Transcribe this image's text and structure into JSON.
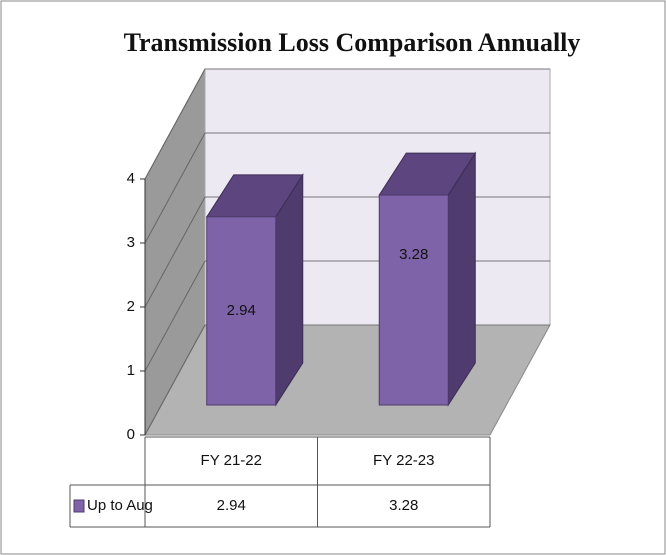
{
  "chart_data": {
    "type": "bar3d",
    "title": "Transmission Loss Comparison Annually",
    "categories": [
      "FY 21-22",
      "FY 22-23"
    ],
    "series": [
      {
        "name": "Up to Aug",
        "color": "#7f63a8",
        "values": [
          2.94,
          3.28
        ]
      }
    ],
    "ylim": [
      0,
      4
    ],
    "yticks": [
      0,
      1,
      2,
      3,
      4
    ],
    "grid": true,
    "data_table": true
  }
}
